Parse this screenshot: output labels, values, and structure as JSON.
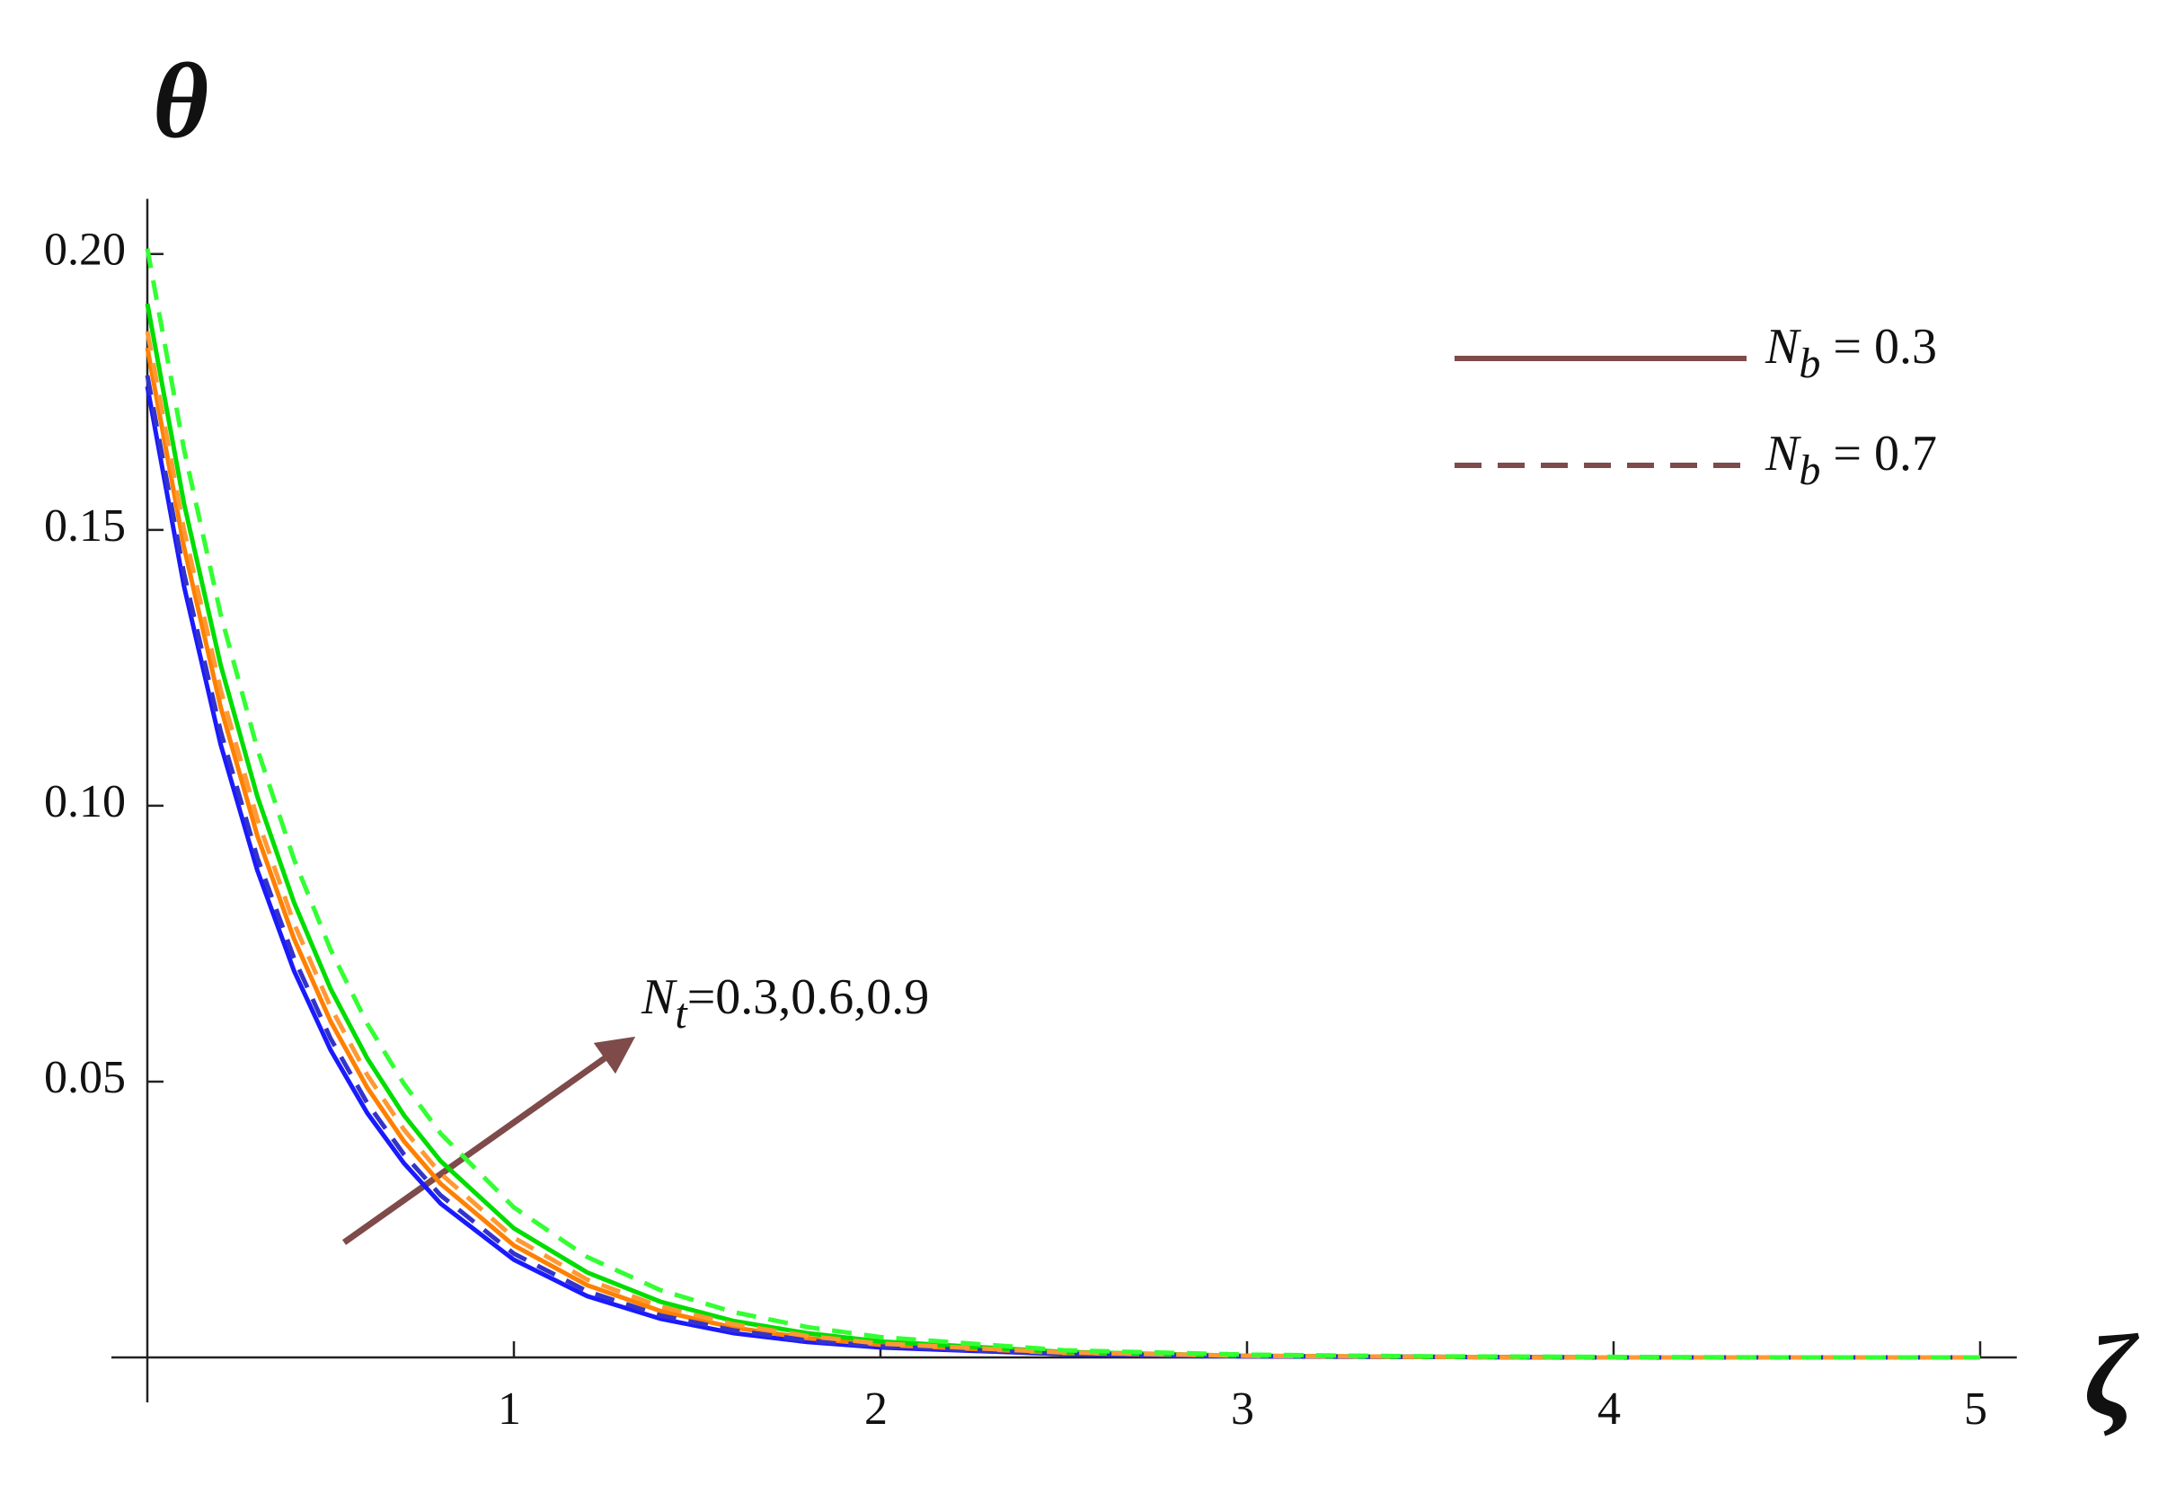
{
  "chart_data": {
    "type": "line",
    "xlabel": "ζ",
    "ylabel": "θ",
    "x": [
      0,
      0.1,
      0.2,
      0.3,
      0.4,
      0.5,
      0.6,
      0.7,
      0.8,
      1,
      1.2,
      1.4,
      1.6,
      1.8,
      2,
      2.5,
      3,
      3.5,
      4,
      4.5,
      5
    ],
    "series": [
      {
        "color": "#1a1aff",
        "dash": false,
        "values": [
          0.176,
          0.1398,
          0.1111,
          0.0883,
          0.0701,
          0.0557,
          0.0443,
          0.0352,
          0.0279,
          0.0177,
          0.0111,
          0.007,
          0.0044,
          0.0028,
          0.0018,
          0.0006,
          0.0002,
          0.0001,
          0,
          0,
          0
        ]
      },
      {
        "color": "#ff8000",
        "dash": false,
        "values": [
          0.183,
          0.1469,
          0.1179,
          0.0946,
          0.0759,
          0.0609,
          0.0489,
          0.0392,
          0.0315,
          0.0203,
          0.0131,
          0.0084,
          0.0054,
          0.0035,
          0.0023,
          0.0008,
          0.0003,
          0.0001,
          0,
          0,
          0
        ]
      },
      {
        "color": "#00dd00",
        "dash": false,
        "values": [
          0.191,
          0.1548,
          0.1255,
          0.1017,
          0.0825,
          0.0668,
          0.0542,
          0.0439,
          0.0356,
          0.0234,
          0.0154,
          0.0101,
          0.0066,
          0.0044,
          0.0029,
          0.001,
          0.0003,
          0.0001,
          0,
          0,
          0
        ]
      },
      {
        "color": "#3333cc",
        "dash": true,
        "values": [
          0.178,
          0.1421,
          0.1135,
          0.0906,
          0.0724,
          0.0578,
          0.0461,
          0.0368,
          0.0294,
          0.0188,
          0.012,
          0.0076,
          0.0049,
          0.0031,
          0.002,
          0.0006,
          0.0002,
          0.0001,
          0,
          0,
          0
        ]
      },
      {
        "color": "#ff9933",
        "dash": true,
        "values": [
          0.186,
          0.15,
          0.121,
          0.0976,
          0.0787,
          0.0635,
          0.0512,
          0.0413,
          0.0333,
          0.0217,
          0.0141,
          0.0092,
          0.006,
          0.0039,
          0.0025,
          0.0009,
          0.0003,
          0.0001,
          0,
          0,
          0
        ]
      },
      {
        "color": "#33ff33",
        "dash": true,
        "values": [
          0.201,
          0.1646,
          0.1347,
          0.1103,
          0.0903,
          0.0739,
          0.0605,
          0.0496,
          0.0406,
          0.0272,
          0.0182,
          0.0122,
          0.0082,
          0.0055,
          0.0037,
          0.0013,
          0.0005,
          0.0002,
          0.0001,
          0,
          0
        ]
      }
    ],
    "xlim": [
      0,
      5.1
    ],
    "ylim": [
      0,
      0.21
    ],
    "xticks": [
      1,
      2,
      3,
      4,
      5
    ],
    "yticks": [
      {
        "value": 0.2,
        "label": "0.20"
      },
      0.15,
      {
        "value": 0.1,
        "label": "0.10"
      },
      0.05
    ],
    "grid": false,
    "legend_color": "#7f4a4a",
    "legend": [
      {
        "symbol": "N",
        "subscript": "b",
        "text": " = 0.3",
        "dash": false
      },
      {
        "symbol": "N",
        "subscript": "b",
        "text": " = 0.7",
        "dash": true
      }
    ],
    "annotation": {
      "symbol": "N",
      "subscript": "t",
      "text": "=0.3,0.6,0.9"
    }
  }
}
